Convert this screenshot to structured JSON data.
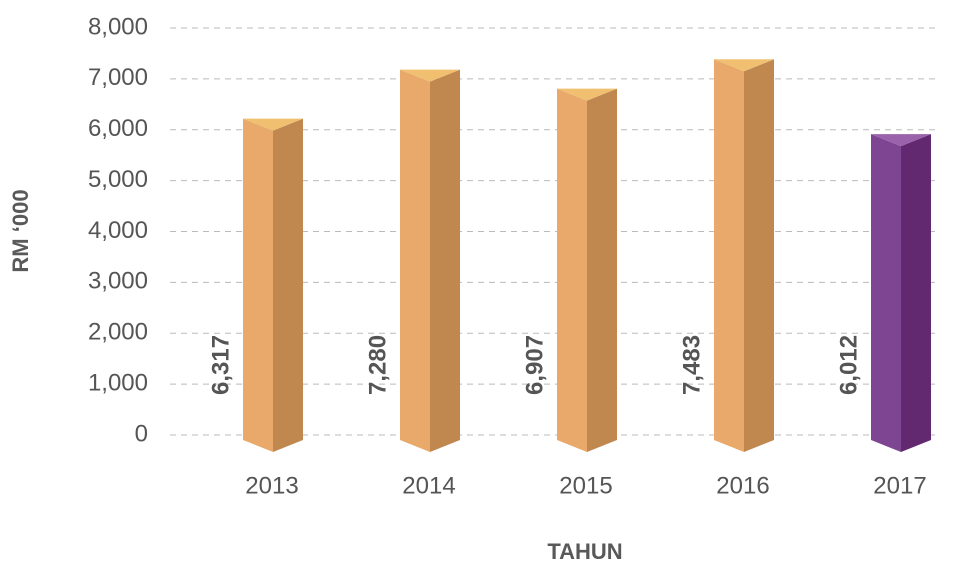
{
  "chart_data": {
    "type": "bar3d",
    "categories": [
      "2013",
      "2014",
      "2015",
      "2016",
      "2017"
    ],
    "values": [
      6317,
      7280,
      6907,
      7483,
      6012
    ],
    "value_labels": [
      "6,317",
      "7,280",
      "6,907",
      "7,483",
      "6,012"
    ],
    "colors": [
      "#e8a96a",
      "#e8a96a",
      "#e8a96a",
      "#e8a96a",
      "#7e4692"
    ],
    "side_colors": [
      "#c0874e",
      "#c0874e",
      "#c0874e",
      "#c0874e",
      "#622870"
    ],
    "top_colors": [
      "#f0c070",
      "#f0c070",
      "#f0c070",
      "#f0c070",
      "#9a62aa"
    ],
    "ylabel": "RM ‘000",
    "xlabel": "TAHUN",
    "ylim": [
      0,
      8000
    ],
    "yticks": [
      0,
      {
        "value": 1000,
        "label": "1,000"
      },
      {
        "value": 2000,
        "label": "2,000"
      },
      {
        "value": 3000,
        "label": "3,000"
      },
      {
        "value": 4000,
        "label": "4,000"
      },
      {
        "value": 5000,
        "label": "5,000"
      },
      {
        "value": 6000,
        "label": "6,000"
      },
      {
        "value": 7000,
        "label": "7,000"
      },
      {
        "value": 8000,
        "label": "8,000"
      }
    ],
    "grid": true
  }
}
